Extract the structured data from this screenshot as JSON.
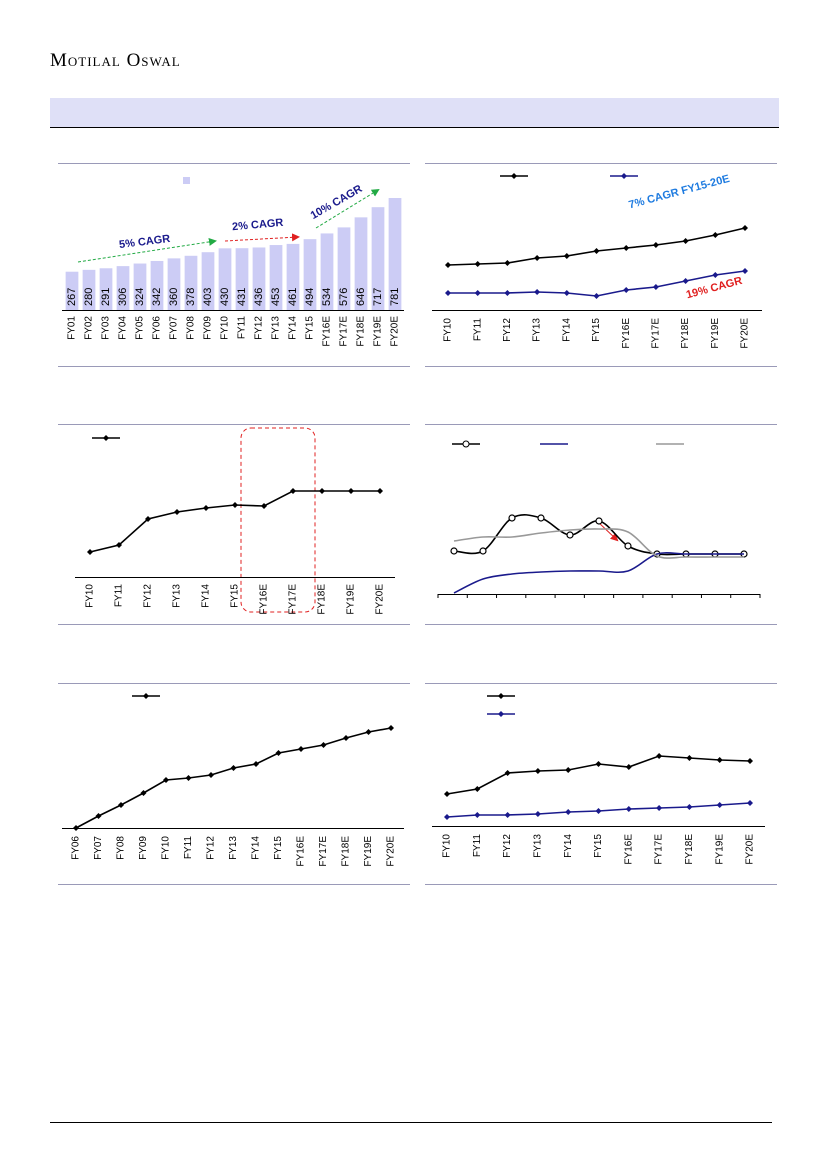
{
  "header": {
    "brand": "Motilal Oswal"
  },
  "chart_data": [
    {
      "type": "bar",
      "categories": [
        "FY01",
        "FY02",
        "FY03",
        "FY04",
        "FY05",
        "FY06",
        "FY07",
        "FY08",
        "FY09",
        "FY10",
        "FY11",
        "FY12",
        "FY13",
        "FY14",
        "FY15",
        "FY16E",
        "FY17E",
        "FY18E",
        "FY19E",
        "FY20E"
      ],
      "values": [
        267,
        280,
        291,
        306,
        324,
        342,
        360,
        378,
        403,
        430,
        431,
        436,
        453,
        461,
        494,
        534,
        576,
        646,
        717,
        781
      ],
      "color": "#ccccf5",
      "annotations": [
        "5% CAGR",
        "2% CAGR",
        "10% CAGR"
      ]
    },
    {
      "type": "line",
      "categories": [
        "FY10",
        "FY11",
        "FY12",
        "FY13",
        "FY14",
        "FY15",
        "FY16E",
        "FY17E",
        "FY18E",
        "FY19E",
        "FY20E"
      ],
      "series": [
        {
          "color": "#000000",
          "marker": "diamond",
          "values": [
            45,
            46,
            47,
            52,
            54,
            59,
            62,
            65,
            69,
            75,
            82
          ]
        },
        {
          "color": "#1a1a8c",
          "marker": "diamond",
          "values": [
            17,
            17,
            17,
            18,
            17,
            14,
            20,
            23,
            29,
            35,
            39
          ]
        }
      ],
      "annotations": [
        "7% CAGR FY15-20E",
        "19% CAGR"
      ]
    },
    {
      "type": "line",
      "categories": [
        "FY10",
        "FY11",
        "FY12",
        "FY13",
        "FY14",
        "FY15",
        "FY16E",
        "FY17E",
        "FY18E",
        "FY19E",
        "FY20E"
      ],
      "series": [
        {
          "color": "#000000",
          "marker": "diamond",
          "values": [
            25,
            32,
            58,
            65,
            69,
            72,
            71,
            86,
            86,
            86,
            86
          ]
        }
      ]
    },
    {
      "type": "line",
      "smooth": true,
      "categories": [
        null,
        null,
        null,
        null,
        null,
        null,
        null,
        null,
        null,
        null,
        null
      ],
      "series": [
        {
          "color": "#000000",
          "marker": "circle",
          "values": [
            43,
            43,
            76,
            76,
            59,
            73,
            48,
            40,
            40,
            40,
            40
          ]
        },
        {
          "color": "#1a1a8c",
          "values": [
            1,
            15,
            20,
            22,
            23,
            23,
            23,
            40,
            40,
            40,
            40
          ]
        },
        {
          "color": "#999999",
          "values": [
            53,
            57,
            57,
            61,
            64,
            65,
            62,
            38,
            37,
            37,
            37
          ]
        }
      ]
    },
    {
      "type": "line",
      "categories": [
        "FY06",
        "FY07",
        "FY08",
        "FY09",
        "FY10",
        "FY11",
        "FY12",
        "FY13",
        "FY14",
        "FY15",
        "FY16E",
        "FY17E",
        "FY18E",
        "FY19E",
        "FY20E"
      ],
      "series": [
        {
          "color": "#000000",
          "marker": "diamond",
          "values": [
            0,
            12,
            23,
            35,
            48,
            50,
            53,
            60,
            64,
            75,
            79,
            83,
            90,
            96,
            100
          ]
        }
      ]
    },
    {
      "type": "line",
      "categories": [
        "FY10",
        "FY11",
        "FY12",
        "FY13",
        "FY14",
        "FY15",
        "FY16E",
        "FY17E",
        "FY18E",
        "FY19E",
        "FY20E"
      ],
      "series": [
        {
          "color": "#000000",
          "marker": "diamond",
          "values": [
            32,
            37,
            53,
            55,
            56,
            62,
            59,
            70,
            68,
            66,
            65
          ]
        },
        {
          "color": "#1a1a8c",
          "marker": "diamond",
          "values": [
            9,
            11,
            11,
            12,
            14,
            15,
            17,
            18,
            19,
            21,
            23
          ]
        }
      ]
    }
  ]
}
